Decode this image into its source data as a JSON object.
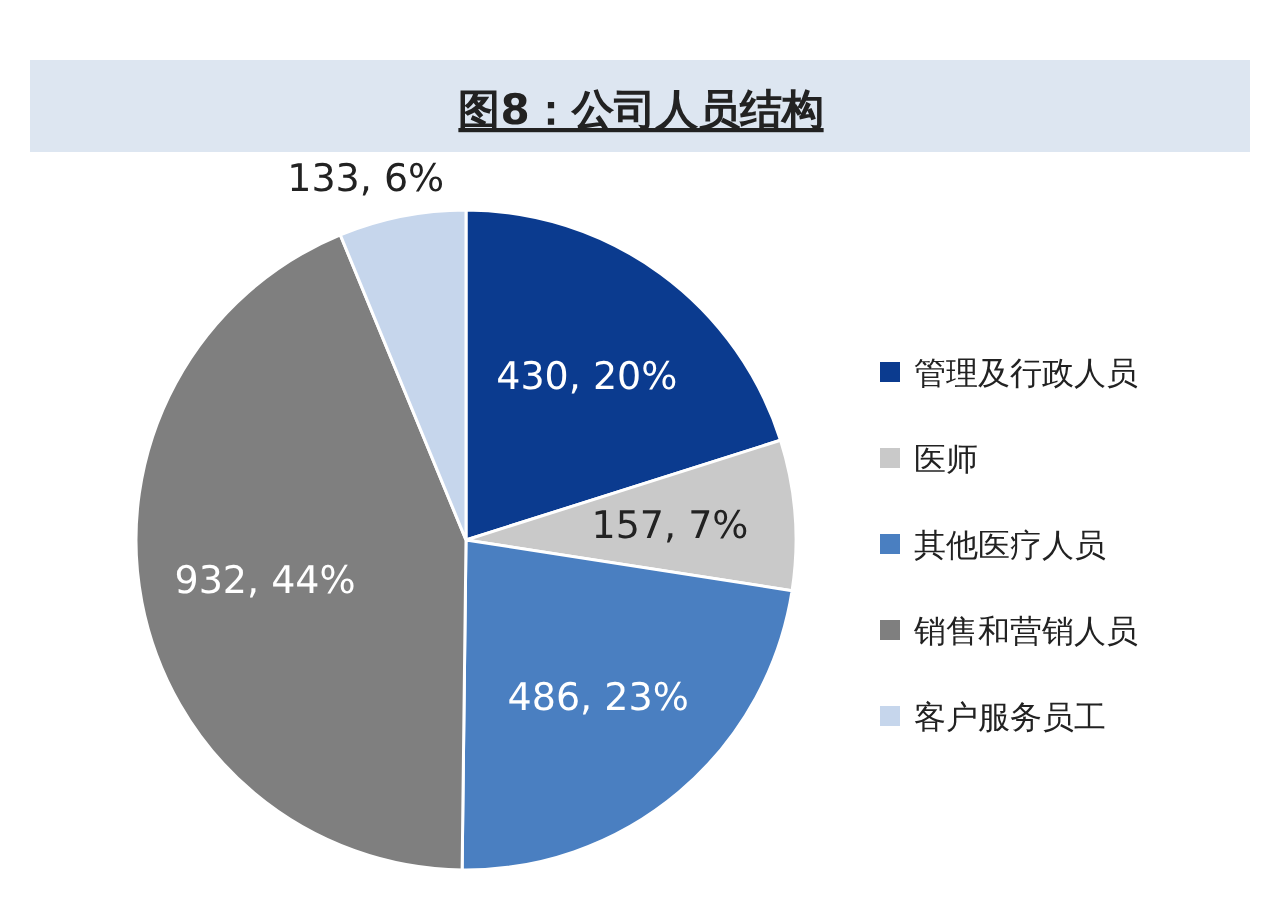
{
  "chart_data": {
    "type": "pie",
    "title": "图8：公司人员结构",
    "categories": [
      "管理及行政人员",
      "医师",
      "其他医疗人员",
      "销售和营销人员",
      "客户服务员工"
    ],
    "values": [
      430,
      157,
      486,
      932,
      133
    ],
    "colors": [
      "#0b3b8f",
      "#c9c9c9",
      "#4a7fc1",
      "#7f7f7f",
      "#c6d6ec"
    ],
    "value_labels": [
      "430, 20%",
      "157, 7%",
      "486, 23%",
      "932, 44%",
      "133, 6%"
    ],
    "legend": "right"
  }
}
